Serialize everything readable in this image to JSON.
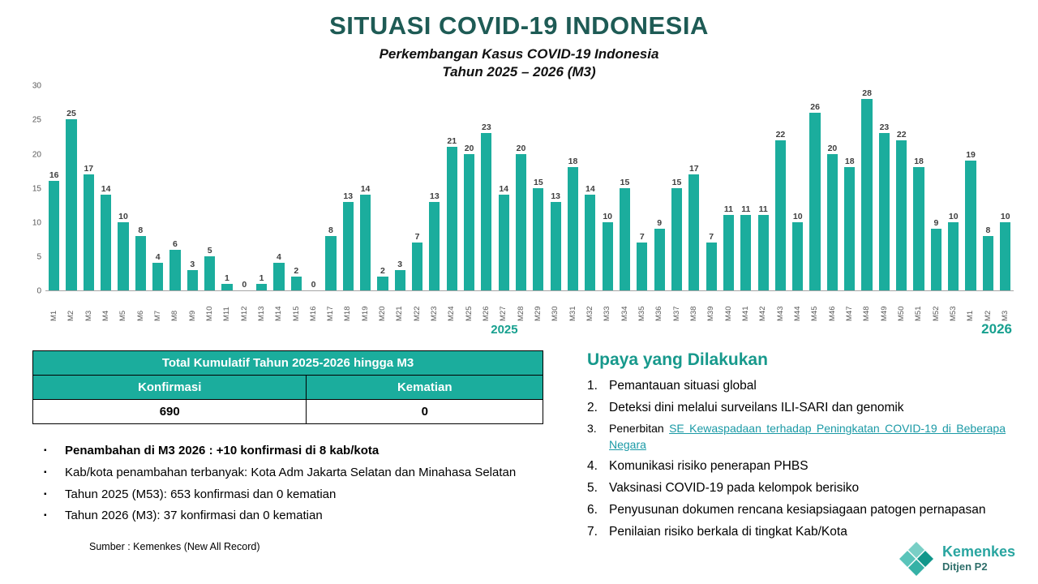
{
  "title": "SITUASI COVID-19 INDONESIA",
  "chart_data": {
    "type": "bar",
    "title": "Perkembangan Kasus COVID-19 Indonesia",
    "subtitle": "Tahun 2025 – 2026 (M3)",
    "categories": [
      "M1",
      "M2",
      "M3",
      "M4",
      "M5",
      "M6",
      "M7",
      "M8",
      "M9",
      "M10",
      "M11",
      "M12",
      "M13",
      "M14",
      "M15",
      "M16",
      "M17",
      "M18",
      "M19",
      "M20",
      "M21",
      "M22",
      "M23",
      "M24",
      "M25",
      "M26",
      "M27",
      "M28",
      "M29",
      "M30",
      "M31",
      "M32",
      "M33",
      "M34",
      "M35",
      "M36",
      "M37",
      "M38",
      "M39",
      "M40",
      "M41",
      "M42",
      "M43",
      "M44",
      "M45",
      "M46",
      "M47",
      "M48",
      "M49",
      "M50",
      "M51",
      "M52",
      "M53",
      "M1",
      "M2",
      "M3"
    ],
    "values": [
      16,
      25,
      17,
      14,
      10,
      8,
      4,
      6,
      3,
      5,
      1,
      0,
      1,
      4,
      2,
      0,
      8,
      13,
      14,
      2,
      3,
      7,
      13,
      21,
      20,
      23,
      14,
      20,
      15,
      13,
      18,
      14,
      10,
      15,
      7,
      9,
      15,
      17,
      7,
      11,
      11,
      11,
      22,
      10,
      26,
      20,
      18,
      28,
      23,
      22,
      18,
      9,
      10,
      19,
      8,
      10
    ],
    "ylim": [
      0,
      30
    ],
    "yticks": [
      0,
      5,
      10,
      15,
      20,
      25,
      30
    ],
    "bar_color": "#1BAD9D",
    "year_left": "2025",
    "year_right": "2026",
    "legend": "none",
    "grid": "off"
  },
  "table": {
    "title": "Total Kumulatif Tahun 2025-2026 hingga M3",
    "columns": [
      "Konfirmasi",
      "Kematian"
    ],
    "values": [
      "690",
      "0"
    ]
  },
  "bullets": [
    {
      "text": "Penambahan di M3 2026 : +10 konfirmasi di 8 kab/kota",
      "bold": true
    },
    {
      "text": "Kab/kota penambahan terbanyak: Kota Adm Jakarta Selatan dan Minahasa Selatan",
      "bold": false
    },
    {
      "text": "Tahun 2025 (M53): 653 konfirmasi dan 0 kematian",
      "bold": false
    },
    {
      "text": "Tahun 2026 (M3): 37 konfirmasi dan 0 kematian",
      "bold": false
    }
  ],
  "upaya": {
    "title": "Upaya yang Dilakukan",
    "items": [
      {
        "text": "Pemantauan situasi global"
      },
      {
        "text": "Deteksi dini melalui surveilans ILI-SARI dan genomik"
      },
      {
        "pre": "Penerbitan ",
        "link": "SE Kewaspadaan terhadap Peningkatan COVID-19 di Beberapa Negara",
        "small": true
      },
      {
        "text": "Komunikasi risiko penerapan PHBS"
      },
      {
        "text": "Vaksinasi COVID-19 pada kelompok berisiko"
      },
      {
        "text": "Penyusunan dokumen rencana kesiapsiagaan patogen pernapasan"
      },
      {
        "text": "Penilaian risiko berkala di tingkat Kab/Kota"
      }
    ]
  },
  "source": "Sumber : Kemenkes (New All Record)",
  "logo": {
    "line1": "Kemenkes",
    "line2": "Ditjen P2"
  }
}
